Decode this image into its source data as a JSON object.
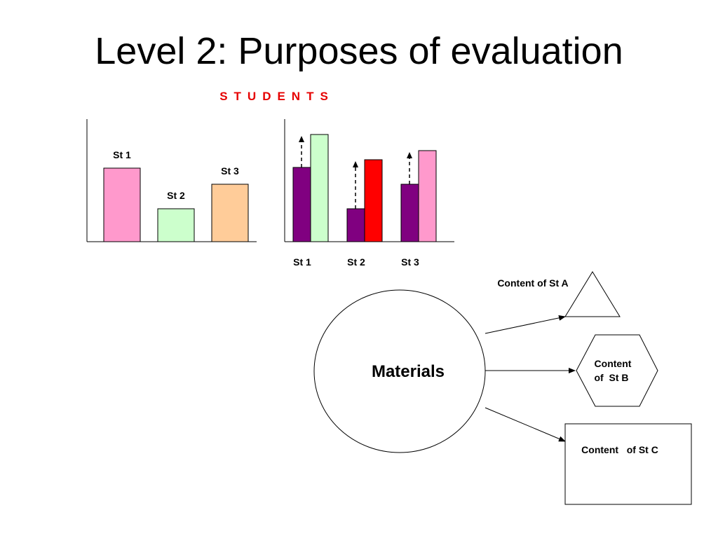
{
  "slide": {
    "title": "Level 2: Purposes of evaluation",
    "subtitle": "STUDENTS",
    "subtitle_color": "#e60000"
  },
  "chart_data": [
    {
      "type": "bar",
      "title": "",
      "categories": [
        "St 1",
        "St 2",
        "St 3"
      ],
      "values": [
        105,
        47,
        82
      ],
      "ylim": [
        0,
        175
      ],
      "bar_labels": [
        "St 1",
        "St 2",
        "St 3"
      ],
      "colors": [
        "#ff99cc",
        "#ccffcc",
        "#ffcc99"
      ],
      "grid": false,
      "legend": "none"
    },
    {
      "type": "bar",
      "title": "",
      "categories": [
        "St 1",
        "St 2",
        "St 3"
      ],
      "series": [
        {
          "values": [
            106,
            47,
            82
          ],
          "colors": [
            "#800080",
            "#800080",
            "#800080"
          ]
        },
        {
          "values": [
            153,
            117,
            130
          ],
          "colors": [
            "#ccffcc",
            "#ff0000",
            "#ff99cc"
          ]
        }
      ],
      "ylim": [
        0,
        175
      ],
      "arrows": "dashed upward arrows from top of first bar in each group",
      "grid": false,
      "legend": "none"
    }
  ],
  "diagram": {
    "center_label": "Materials",
    "targets": [
      {
        "shape": "triangle",
        "label": "Content of St A"
      },
      {
        "shape": "hexagon",
        "label_line1": "Content",
        "label_line2": "of  St B"
      },
      {
        "shape": "rectangle",
        "label": "Content   of St C"
      }
    ]
  }
}
